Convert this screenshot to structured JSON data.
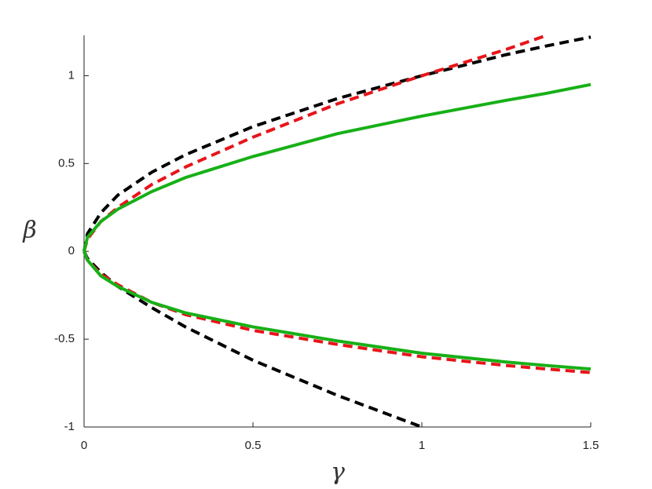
{
  "chart_data": {
    "type": "line",
    "xlabel": "γ",
    "ylabel": "β",
    "x": [
      0,
      0.01,
      0.05,
      0.1,
      0.2,
      0.3,
      0.5,
      0.75,
      1,
      1.25,
      1.37,
      1.5
    ],
    "series": [
      {
        "color": "#000000",
        "style": "dashed",
        "values": [
          0,
          0.1,
          0.22,
          0.32,
          0.45,
          0.55,
          0.71,
          0.87,
          1.0,
          1.12,
          1.17,
          1.22
        ]
      },
      {
        "color": "#000000",
        "style": "dashed",
        "values": [
          0,
          -0.04,
          -0.12,
          -0.2,
          -0.32,
          -0.43,
          -0.62,
          -0.82,
          -1.0,
          null,
          null,
          null
        ]
      },
      {
        "color": "#e8141a",
        "style": "dashed",
        "values": [
          0,
          0.07,
          0.17,
          0.25,
          0.38,
          0.48,
          0.65,
          0.84,
          1.0,
          1.15,
          1.23,
          null
        ]
      },
      {
        "color": "#e8141a",
        "style": "dashed",
        "values": [
          0,
          -0.05,
          -0.13,
          -0.19,
          -0.29,
          -0.36,
          -0.45,
          -0.53,
          -0.6,
          -0.65,
          -0.67,
          -0.69
        ]
      },
      {
        "color": "#17b017",
        "style": "solid",
        "values": [
          0,
          0.08,
          0.17,
          0.24,
          0.34,
          0.42,
          0.54,
          0.67,
          0.77,
          0.86,
          0.9,
          0.95
        ]
      },
      {
        "color": "#17b017",
        "style": "solid",
        "values": [
          0,
          -0.05,
          -0.14,
          -0.2,
          -0.29,
          -0.35,
          -0.43,
          -0.51,
          -0.58,
          -0.63,
          -0.65,
          -0.67
        ]
      }
    ],
    "xlim": [
      0,
      1.5
    ],
    "ylim": [
      -1,
      1.23
    ],
    "xticks": [
      0,
      0.5,
      1,
      1.5
    ],
    "yticks": [
      -1,
      -0.5,
      0,
      0.5,
      1
    ]
  }
}
